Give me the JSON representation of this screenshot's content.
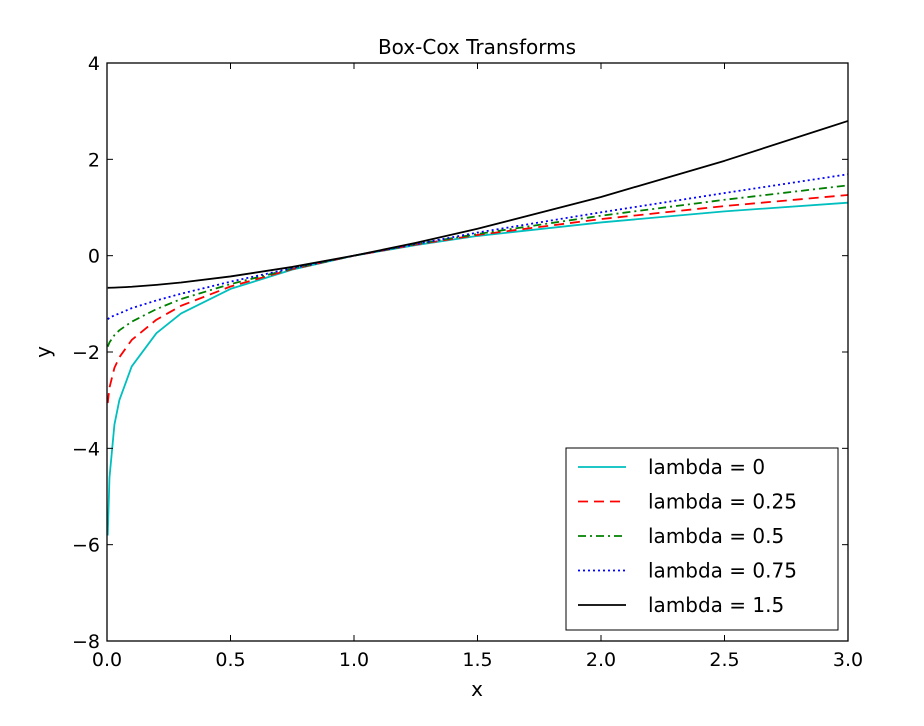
{
  "chart_data": {
    "type": "line",
    "title": "Box-Cox Transforms",
    "xlabel": "x",
    "ylabel": "y",
    "xlim": [
      0.0,
      3.0
    ],
    "ylim": [
      -8,
      4
    ],
    "xticks": [
      "0.0",
      "0.5",
      "1.0",
      "1.5",
      "2.0",
      "2.5",
      "3.0"
    ],
    "yticks": [
      "−8",
      "−6",
      "−4",
      "−2",
      "0",
      "2",
      "4"
    ],
    "grid": false,
    "legend_position": "lower-right",
    "x": [
      0.003,
      0.01,
      0.03,
      0.05,
      0.1,
      0.2,
      0.3,
      0.5,
      0.75,
      1.0,
      1.25,
      1.5,
      2.0,
      2.5,
      3.0
    ],
    "series": [
      {
        "name": "lambda = 0",
        "color": "#00bfbf",
        "dash": "solid",
        "values": [
          -5.81,
          -4.61,
          -3.51,
          -3.0,
          -2.3,
          -1.61,
          -1.2,
          -0.69,
          -0.29,
          0.0,
          0.22,
          0.41,
          0.69,
          0.92,
          1.1
        ]
      },
      {
        "name": "lambda = 0.25",
        "color": "#ff0000",
        "dash": "dashed",
        "values": [
          -3.06,
          -2.74,
          -2.33,
          -2.11,
          -1.75,
          -1.33,
          -1.04,
          -0.64,
          -0.28,
          0.0,
          0.23,
          0.43,
          0.76,
          1.03,
          1.26
        ]
      },
      {
        "name": "lambda = 0.5",
        "color": "#008000",
        "dash": "dashdot",
        "values": [
          -1.89,
          -1.8,
          -1.65,
          -1.55,
          -1.37,
          -1.11,
          -0.9,
          -0.59,
          -0.27,
          0.0,
          0.24,
          0.45,
          0.83,
          1.16,
          1.46
        ]
      },
      {
        "name": "lambda = 0.75",
        "color": "#0000ff",
        "dash": "dotted",
        "values": [
          -1.32,
          -1.29,
          -1.24,
          -1.2,
          -1.09,
          -0.93,
          -0.79,
          -0.54,
          -0.26,
          0.0,
          0.24,
          0.48,
          0.9,
          1.3,
          1.69
        ]
      },
      {
        "name": "lambda = 1.5",
        "color": "#000000",
        "dash": "solid",
        "values": [
          -0.667,
          -0.666,
          -0.663,
          -0.659,
          -0.646,
          -0.607,
          -0.557,
          -0.431,
          -0.234,
          0.0,
          0.265,
          0.558,
          1.219,
          1.969,
          2.797
        ]
      }
    ]
  }
}
